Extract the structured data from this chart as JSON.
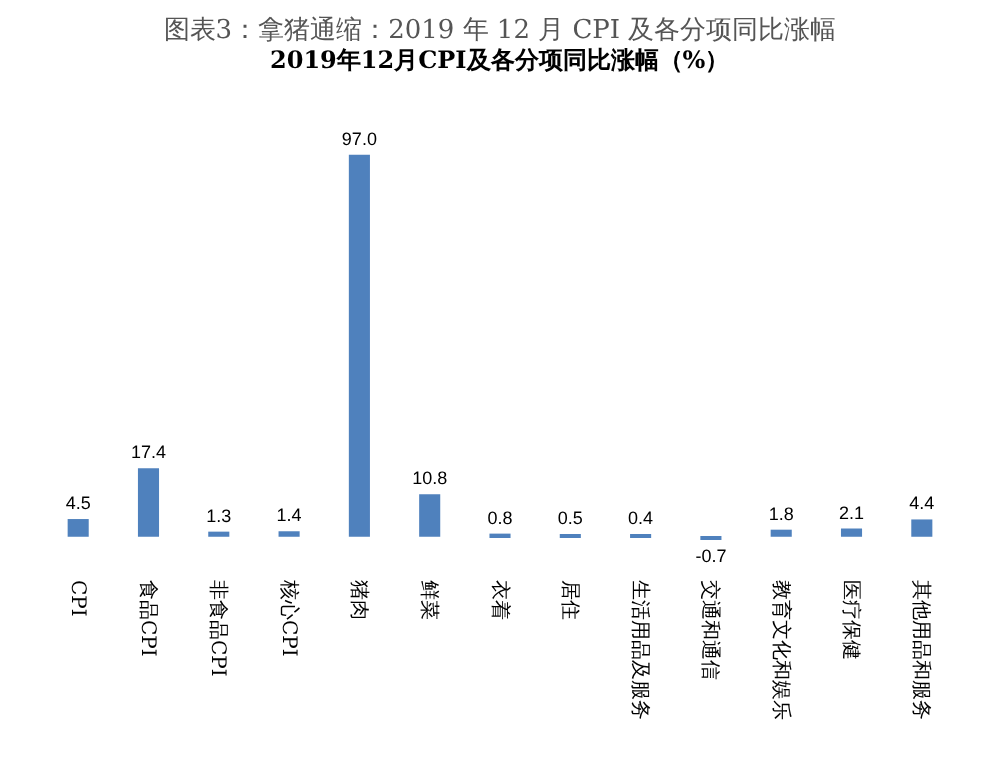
{
  "chart_data": {
    "type": "bar",
    "title": "图表3：拿猪通缩：2019 年 12 月 CPI 及各分项同比涨幅",
    "subtitle": "2019年12月CPI及各分项同比涨幅（%）",
    "categories": [
      "CPI",
      "食品CPI",
      "非食品CPI",
      "核心CPI",
      "猪肉",
      "鲜菜",
      "衣着",
      "居住",
      "生活用品及服务",
      "交通和通信",
      "教育文化和娱乐",
      "医疗保健",
      "其他用品和服务"
    ],
    "values": [
      4.5,
      17.4,
      1.3,
      1.4,
      97.0,
      10.8,
      0.8,
      0.5,
      0.4,
      -0.7,
      1.8,
      2.1,
      4.4
    ],
    "value_labels": [
      "4.5",
      "17.4",
      "1.3",
      "1.4",
      "97.0",
      "10.8",
      "0.8",
      "0.5",
      "0.4",
      "-0.7",
      "1.8",
      "2.1",
      "4.4"
    ],
    "color": "#4f81bd"
  }
}
